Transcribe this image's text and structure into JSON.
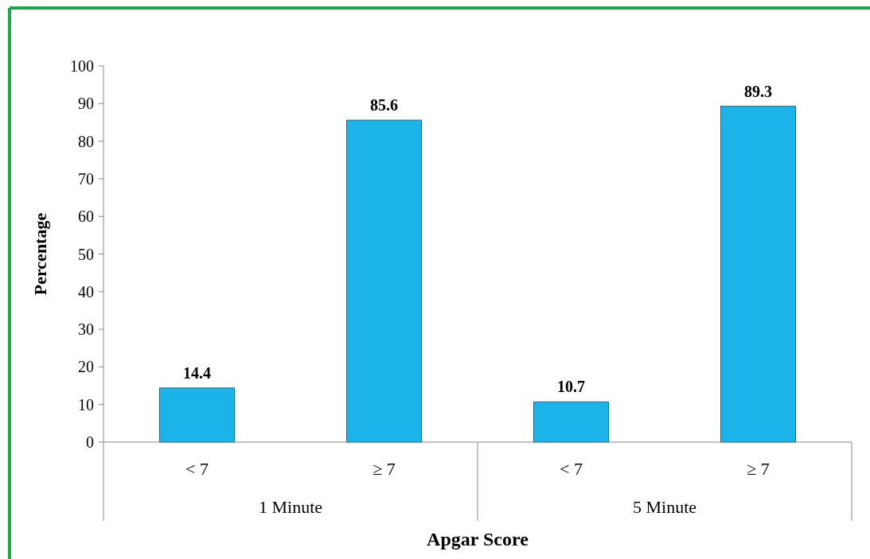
{
  "chart_data": {
    "type": "bar",
    "xlabel": "Apgar Score",
    "ylabel": "Percentage",
    "categories": [
      "< 7",
      "≥ 7",
      "< 7",
      "≥ 7"
    ],
    "values": [
      14.4,
      85.6,
      10.7,
      89.3
    ],
    "color": "#1cb4e8",
    "ylim": [
      0,
      100
    ],
    "yticks": [
      0,
      10,
      20,
      30,
      40,
      50,
      60,
      70,
      80,
      90,
      100
    ],
    "data_labels": true,
    "grid": false,
    "annotations": [
      "1 Minute",
      "5 Minute"
    ]
  }
}
